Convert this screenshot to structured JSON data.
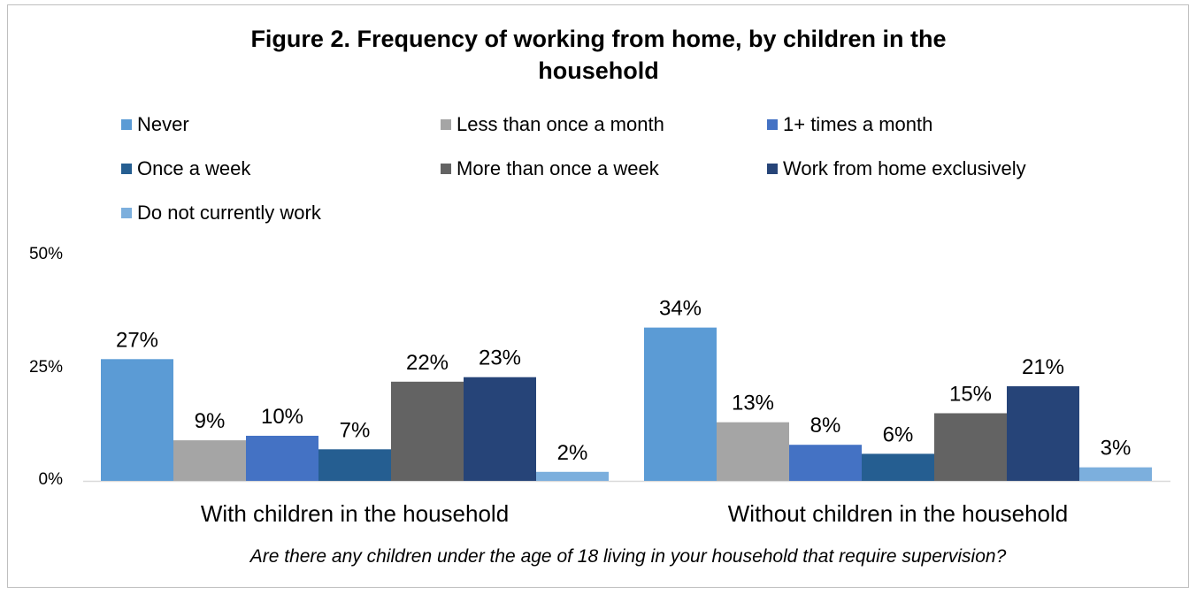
{
  "chart_data": {
    "type": "bar",
    "title": "Figure 2. Frequency of working from home, by children in the household",
    "title_lines": [
      "Figure 2. Frequency of working from home, by children in the",
      "household"
    ],
    "subtitle": "Are there any children under the age of 18 living in your household that require supervision?",
    "categories": [
      "With children in the household",
      "Without children in the household"
    ],
    "ylim": [
      0,
      50
    ],
    "yticks": [
      "0%",
      "25%",
      "50%"
    ],
    "ytick_values": [
      0,
      25,
      50
    ],
    "grid": false,
    "legend_position": "top",
    "series": [
      {
        "name": "Never",
        "color": "#5b9bd5",
        "values": [
          27,
          34
        ],
        "labels": [
          "27%",
          "34%"
        ]
      },
      {
        "name": "Less than once a month",
        "color": "#a5a5a5",
        "values": [
          9,
          13
        ],
        "labels": [
          "9%",
          "13%"
        ]
      },
      {
        "name": "1+ times a month",
        "color": "#4472c4",
        "values": [
          10,
          8
        ],
        "labels": [
          "10%",
          "8%"
        ]
      },
      {
        "name": "Once a week",
        "color": "#255e91",
        "values": [
          7,
          6
        ],
        "labels": [
          "7%",
          "6%"
        ]
      },
      {
        "name": "More than once a week",
        "color": "#636363",
        "values": [
          22,
          15
        ],
        "labels": [
          "22%",
          "15%"
        ]
      },
      {
        "name": "Work from home exclusively",
        "color": "#264478",
        "values": [
          23,
          21
        ],
        "labels": [
          "23%",
          "21%"
        ]
      },
      {
        "name": "Do not currently work",
        "color": "#7cafdd",
        "values": [
          2,
          3
        ],
        "labels": [
          "2%",
          "3%"
        ]
      }
    ]
  }
}
